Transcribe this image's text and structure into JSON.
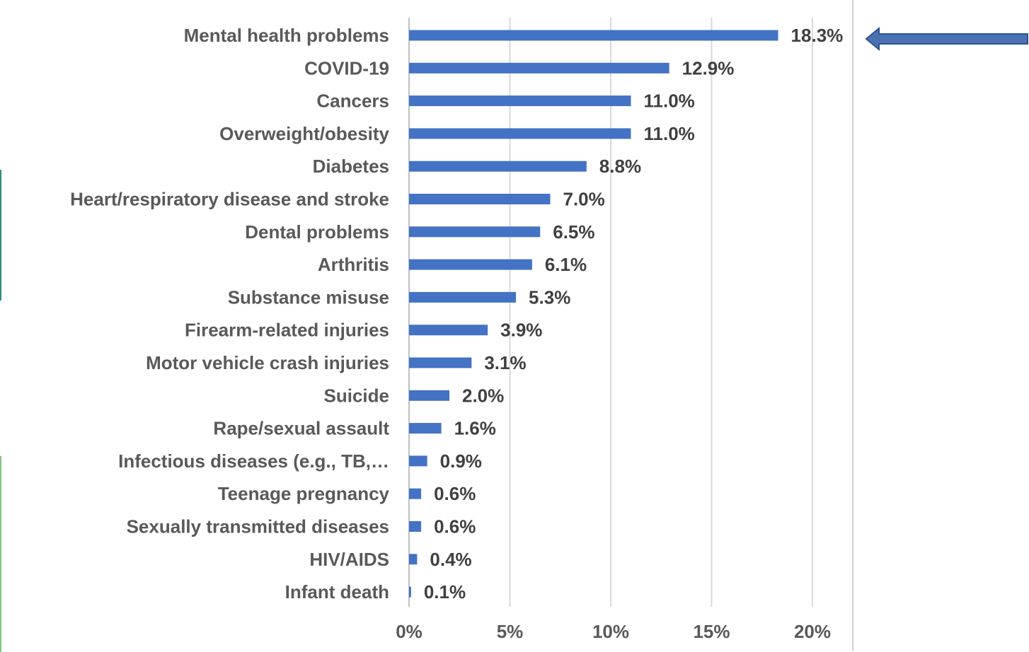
{
  "chart_data": {
    "type": "bar",
    "orientation": "horizontal",
    "categories": [
      "Mental health problems",
      "COVID-19",
      "Cancers",
      "Overweight/obesity",
      "Diabetes",
      "Heart/respiratory disease and stroke",
      "Dental problems",
      "Arthritis",
      "Substance misuse",
      "Firearm-related injuries",
      "Motor vehicle crash injuries",
      "Suicide",
      "Rape/sexual assault",
      "Infectious diseases (e.g., TB,…",
      "Teenage pregnancy",
      "Sexually transmitted diseases",
      "HIV/AIDS",
      "Infant death"
    ],
    "values": [
      18.3,
      12.9,
      11.0,
      11.0,
      8.8,
      7.0,
      6.5,
      6.1,
      5.3,
      3.9,
      3.1,
      2.0,
      1.6,
      0.9,
      0.6,
      0.6,
      0.4,
      0.1
    ],
    "value_labels": [
      "18.3%",
      "12.9%",
      "11.0%",
      "11.0%",
      "8.8%",
      "7.0%",
      "6.5%",
      "6.1%",
      "5.3%",
      "3.9%",
      "3.1%",
      "2.0%",
      "1.6%",
      "0.9%",
      "0.6%",
      "0.6%",
      "0.4%",
      "0.1%"
    ],
    "x_ticks": [
      0,
      5,
      10,
      15,
      20
    ],
    "x_tick_labels": [
      "0%",
      "5%",
      "10%",
      "15%",
      "20%"
    ],
    "xlim": [
      0,
      20
    ],
    "grid": "vertical",
    "bar_color": "#4472c4",
    "highlighted_category": "Mental health problems",
    "highlight_arrow_color": "#4a72b0"
  }
}
